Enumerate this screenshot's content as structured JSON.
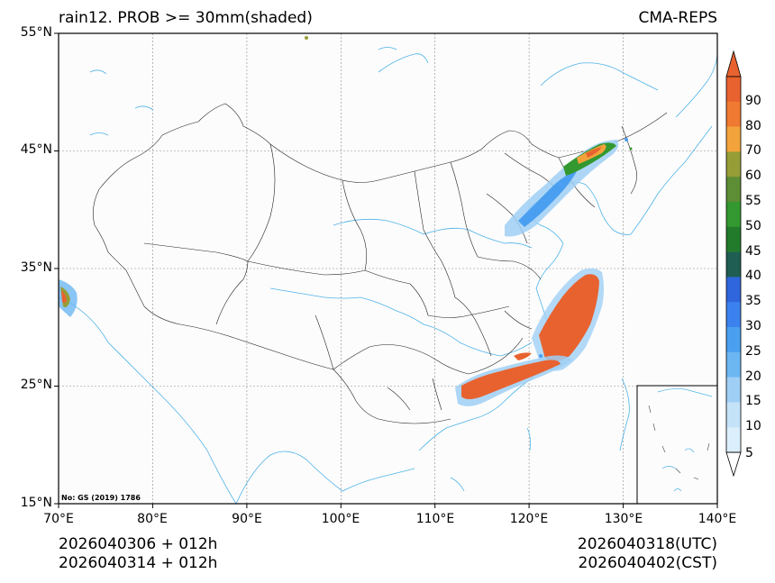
{
  "title": {
    "left": "rain12. PROB >= 30mm(shaded)",
    "right": "CMA-REPS"
  },
  "map": {
    "extent": {
      "lon_min": 70,
      "lon_max": 140,
      "lat_min": 15,
      "lat_max": 55
    },
    "lat_labels": [
      "55°N",
      "45°N",
      "35°N",
      "25°N",
      "15°N"
    ],
    "lon_labels": [
      "70°E",
      "80°E",
      "90°E",
      "100°E",
      "110°E",
      "120°E",
      "130°E",
      "140°E"
    ],
    "review_number": "No: GS (2019) 1786",
    "colors": {
      "coast": "#4fb3e8",
      "border": "#000000",
      "grid": "#888888",
      "background": "#fcfcfc"
    }
  },
  "footer": {
    "left_line1": "2026040306  +  012h",
    "left_line2": "2026040314  +  012h",
    "right_line1": "2026040318(UTC)",
    "right_line2": "2026040402(CST)"
  },
  "colorbar": {
    "labels": [
      "5",
      "10",
      "15",
      "20",
      "25",
      "30",
      "35",
      "40",
      "45",
      "50",
      "55",
      "60",
      "70",
      "80",
      "90"
    ],
    "colors": [
      "#dbeefb",
      "#c4e2f8",
      "#9fcff5",
      "#6cb7f2",
      "#4a9ff0",
      "#3c82ee",
      "#2f66dd",
      "#1f5e52",
      "#227b2b",
      "#33982f",
      "#5d8d35",
      "#969d37",
      "#f3a33c",
      "#f07a31",
      "#e8622f"
    ]
  }
}
